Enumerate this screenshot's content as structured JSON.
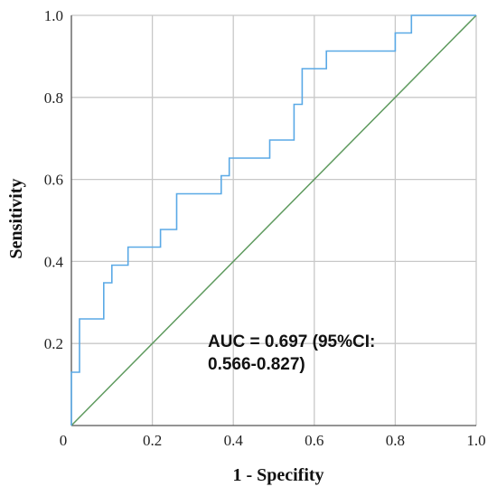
{
  "chart_data": {
    "type": "line",
    "title": "",
    "xlabel": "1 - Specifity",
    "ylabel": "Sensitivity",
    "xlim": [
      0,
      1
    ],
    "ylim": [
      0,
      1
    ],
    "x_ticks": [
      "0",
      "0.2",
      "0.4",
      "0.6",
      "0.8",
      "1.0"
    ],
    "y_ticks": [
      "0.2",
      "0.4",
      "0.6",
      "0.8",
      "1.0"
    ],
    "grid": true,
    "annotation": [
      "AUC = 0.697 (95%CI:",
      "0.566-0.827)"
    ],
    "colors": {
      "roc": "#5aa9e6",
      "reference": "#5e9a5e",
      "grid": "#c8c8c8",
      "axis": "#555555"
    },
    "series": [
      {
        "x": [
          0.0,
          0.0,
          0.02,
          0.02,
          0.08,
          0.08,
          0.1,
          0.1,
          0.14,
          0.14,
          0.22,
          0.22,
          0.26,
          0.26,
          0.37,
          0.37,
          0.39,
          0.39,
          0.49,
          0.49,
          0.55,
          0.55,
          0.57,
          0.57,
          0.63,
          0.63,
          0.8,
          0.8,
          0.84,
          0.84,
          1.0
        ],
        "y": [
          0.0,
          0.13,
          0.13,
          0.26,
          0.26,
          0.348,
          0.348,
          0.391,
          0.391,
          0.435,
          0.435,
          0.478,
          0.478,
          0.565,
          0.565,
          0.609,
          0.609,
          0.652,
          0.652,
          0.696,
          0.696,
          0.783,
          0.783,
          0.87,
          0.87,
          0.913,
          0.913,
          0.957,
          0.957,
          1.0,
          1.0
        ]
      },
      {
        "x": [
          0,
          1
        ],
        "y": [
          0,
          1
        ]
      }
    ]
  }
}
